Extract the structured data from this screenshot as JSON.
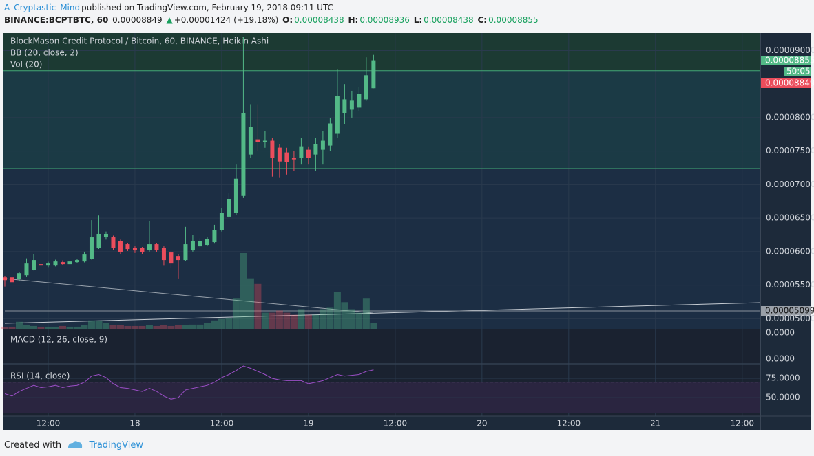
{
  "header": {
    "author": "A_Cryptastic_Mind",
    "published": "published on TradingView.com, February 19, 2018 09:11 UTC",
    "symbol": "BINANCE:BCPTBTC, 60",
    "last": "0.00008849",
    "change": "+0.00001424 (+19.18%)",
    "o_label": "O:",
    "o": "0.00008438",
    "h_label": "H:",
    "h": "0.00008936",
    "l_label": "L:",
    "l": "0.00008438",
    "c_label": "C:",
    "c": "0.00008855"
  },
  "chart_data": {
    "type": "candlestick",
    "title": "BlockMason Credit Protocol / Bitcoin, 60, BINANCE, Heikin Ashi",
    "indicators": [
      "BB (20, close, 2)",
      "Vol (20)"
    ],
    "colors": {
      "up": "#53b987",
      "down": "#eb4d5c"
    },
    "x": [
      6,
      7,
      8,
      9,
      10,
      11,
      12,
      13,
      14,
      15,
      16,
      17,
      18,
      19,
      20,
      21,
      22,
      23,
      24,
      25,
      26,
      27,
      28,
      29,
      30,
      31,
      32,
      33,
      34,
      35,
      36,
      37,
      38,
      39,
      40,
      41,
      42,
      43,
      44,
      45,
      46,
      47,
      48,
      49,
      50,
      51,
      52,
      53,
      54,
      55,
      56,
      57
    ],
    "xlim": [
      6,
      110.5
    ],
    "xticks": [
      {
        "value": 12,
        "label": "12:00"
      },
      {
        "value": 24,
        "label": "18"
      },
      {
        "value": 36,
        "label": "12:00"
      },
      {
        "value": 48,
        "label": "19"
      },
      {
        "value": 60,
        "label": "12:00"
      },
      {
        "value": 72,
        "label": "20"
      },
      {
        "value": 84,
        "label": "12:00"
      },
      {
        "value": 96,
        "label": "21"
      },
      {
        "value": 108,
        "label": "12:00"
      }
    ],
    "open": [
      5.617e-05,
      5.617e-05,
      5.597e-05,
      5.648e-05,
      5.731e-05,
      5.813e-05,
      5.792e-05,
      5.792e-05,
      5.844e-05,
      5.813e-05,
      5.844e-05,
      5.854e-05,
      5.895e-05,
      6.06e-05,
      6.214e-05,
      6.214e-05,
      6.163e-05,
      6.111e-05,
      6.06e-05,
      6.06e-05,
      6.019e-05,
      6.111e-05,
      6.06e-05,
      5.988e-05,
      5.936e-05,
      5.875e-05,
      6.019e-05,
      6.08e-05,
      6.101e-05,
      6.142e-05,
      6.317e-05,
      6.523e-05,
      6.574e-05,
      6.832e-05,
      7.449e-05,
      7.675e-05,
      7.634e-05,
      7.655e-05,
      7.552e-05,
      7.48e-05,
      7.398e-05,
      7.398e-05,
      7.521e-05,
      7.449e-05,
      7.521e-05,
      7.583e-05,
      7.758e-05,
      8.066e-05,
      8.118e-05,
      8.149e-05,
      8.272e-05,
      8.438e-05
    ],
    "high": [
      5.64e-05,
      5.65e-05,
      5.7e-05,
      5.9e-05,
      5.96e-05,
      5.84e-05,
      5.85e-05,
      5.88e-05,
      5.87e-05,
      5.87e-05,
      5.89e-05,
      6e-05,
      6.47e-05,
      6.54e-05,
      6.3e-05,
      6.24e-05,
      6.18e-05,
      6.13e-05,
      6.08e-05,
      6.07e-05,
      6.46e-05,
      6.13e-05,
      6.08e-05,
      6.01e-05,
      5.96e-05,
      6.37e-05,
      6.25e-05,
      6.2e-05,
      6.22e-05,
      6.4e-05,
      6.65e-05,
      6.88e-05,
      7.3e-05,
      9.2e-05,
      8.2e-05,
      8.2e-05,
      7.8e-05,
      7.7e-05,
      7.6e-05,
      7.55e-05,
      7.5e-05,
      7.7e-05,
      7.56e-05,
      7.7e-05,
      7.8e-05,
      8e-05,
      8.72e-05,
      8.5e-05,
      8.4e-05,
      8.45e-05,
      8.9e-05,
      8.936e-05
    ],
    "low": [
      5.48e-05,
      5.52e-05,
      5.56e-05,
      5.62e-05,
      5.72e-05,
      5.78e-05,
      5.77e-05,
      5.78e-05,
      5.8e-05,
      5.8e-05,
      5.83e-05,
      5.84e-05,
      5.88e-05,
      6.04e-05,
      6.18e-05,
      6.02e-05,
      5.96e-05,
      6.01e-05,
      5.98e-05,
      5.96e-05,
      6e-05,
      5.99e-05,
      5.79e-05,
      5.76e-05,
      5.6e-05,
      5.86e-05,
      6e-05,
      6.06e-05,
      6.08e-05,
      6.12e-05,
      6.3e-05,
      6.5e-05,
      6.55e-05,
      6.8e-05,
      7.4e-05,
      7.5e-05,
      7.55e-05,
      7.12e-05,
      7.1e-05,
      7.15e-05,
      7.2e-05,
      7.3e-05,
      7.3e-05,
      7.2e-05,
      7.3e-05,
      7.5e-05,
      7.7e-05,
      7.9e-05,
      8e-05,
      8.1e-05,
      8.25e-05,
      8.438e-05
    ],
    "close": [
      5.576e-05,
      5.545e-05,
      5.679e-05,
      5.823e-05,
      5.875e-05,
      5.792e-05,
      5.823e-05,
      5.854e-05,
      5.813e-05,
      5.854e-05,
      5.875e-05,
      5.957e-05,
      6.214e-05,
      6.266e-05,
      6.266e-05,
      6.06e-05,
      5.998e-05,
      6.039e-05,
      6.019e-05,
      5.998e-05,
      6.111e-05,
      6.019e-05,
      5.875e-05,
      5.823e-05,
      5.875e-05,
      6.111e-05,
      6.163e-05,
      6.163e-05,
      6.194e-05,
      6.317e-05,
      6.574e-05,
      6.78e-05,
      7.089e-05,
      8.066e-05,
      7.861e-05,
      7.634e-05,
      7.655e-05,
      7.398e-05,
      7.346e-05,
      7.336e-05,
      7.377e-05,
      7.562e-05,
      7.398e-05,
      7.603e-05,
      7.655e-05,
      7.912e-05,
      8.324e-05,
      8.272e-05,
      8.252e-05,
      8.355e-05,
      8.632e-05,
      8.855e-05
    ],
    "volume": [
      3,
      3,
      10,
      5,
      4,
      3,
      3,
      3,
      4,
      3,
      3,
      5,
      12,
      12,
      8,
      5,
      5,
      4,
      4,
      4,
      5,
      4,
      5,
      4,
      5,
      5,
      6,
      6,
      8,
      12,
      14,
      15,
      43,
      108,
      72,
      64,
      23,
      23,
      26,
      23,
      20,
      28,
      20,
      20,
      28,
      30,
      53,
      38,
      28,
      23,
      43,
      8
    ],
    "ylim": [
      4.85e-05,
      9.22e-05
    ],
    "yticks": [
      {
        "value": 5e-05,
        "label": "0.00005000"
      },
      {
        "value": 5.5e-05,
        "label": "0.00005500"
      },
      {
        "value": 6e-05,
        "label": "0.00006000"
      },
      {
        "value": 6.5e-05,
        "label": "0.00006500"
      },
      {
        "value": 7e-05,
        "label": "0.00007000"
      },
      {
        "value": 7.5e-05,
        "label": "0.00007500"
      },
      {
        "value": 8e-05,
        "label": "0.00008000"
      },
      {
        "value": 9e-05,
        "label": "0.00009000"
      }
    ],
    "levels": [
      8.7e-05,
      7.24e-05
    ],
    "price_labels": [
      "0.00008855",
      "50:05",
      "0.00008849"
    ],
    "line_label": "0.00005099",
    "grid": true,
    "macd": {
      "title": "MACD (12, 26, close, 9)",
      "tick_labels": [
        "0.0000",
        "0.0000"
      ]
    },
    "rsi": {
      "title": "RSI (14, close)",
      "color": "#9c4fc7",
      "values": [
        55,
        52,
        58,
        62,
        66,
        63,
        64,
        66,
        63,
        65,
        66,
        70,
        78,
        80,
        76,
        68,
        63,
        62,
        60,
        58,
        62,
        58,
        52,
        48,
        50,
        60,
        62,
        64,
        66,
        70,
        76,
        80,
        85,
        91,
        88,
        84,
        80,
        75,
        73,
        72,
        72,
        72,
        68,
        70,
        72,
        76,
        80,
        78,
        79,
        80,
        84,
        86
      ],
      "ylim": [
        26,
        92
      ],
      "yticks": [
        {
          "value": 75,
          "label": "75.0000"
        },
        {
          "value": 50,
          "label": "50.0000"
        }
      ],
      "bands": [
        30,
        70
      ]
    }
  },
  "footer": {
    "created": "Created with",
    "brand": "TradingView"
  }
}
